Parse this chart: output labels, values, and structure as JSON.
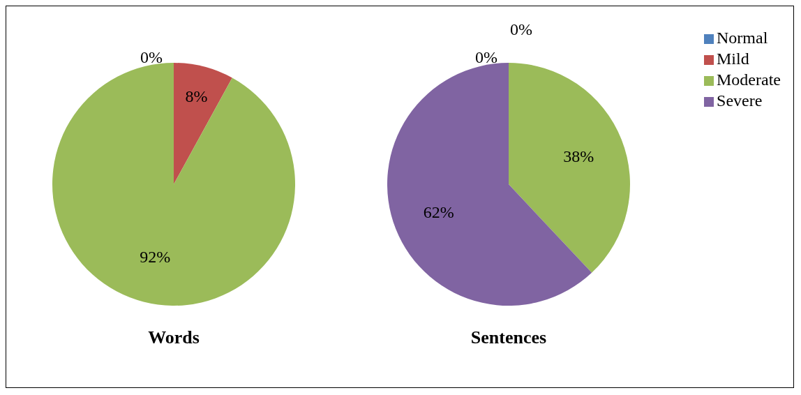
{
  "chart_data": [
    {
      "type": "pie",
      "title": "Words",
      "categories": [
        null,
        null,
        null,
        null
      ],
      "values": [
        0,
        8,
        92,
        0
      ],
      "colors": [
        "#4f81bd",
        "#c0504d",
        "#9bbb59",
        "#8064a2"
      ],
      "value_labels": [
        "0%",
        "8%",
        "92%",
        null
      ]
    },
    {
      "type": "pie",
      "title": "Sentences",
      "categories": [
        "Normal",
        "Mild",
        "Moderate",
        "Severe"
      ],
      "values": [
        0,
        0,
        38,
        62
      ],
      "colors": [
        "#4f81bd",
        "#c0504d",
        "#9bbb59",
        "#8064a2"
      ],
      "value_labels": [
        "0%",
        "0%",
        "38%",
        "62%"
      ],
      "legend": "right"
    }
  ]
}
